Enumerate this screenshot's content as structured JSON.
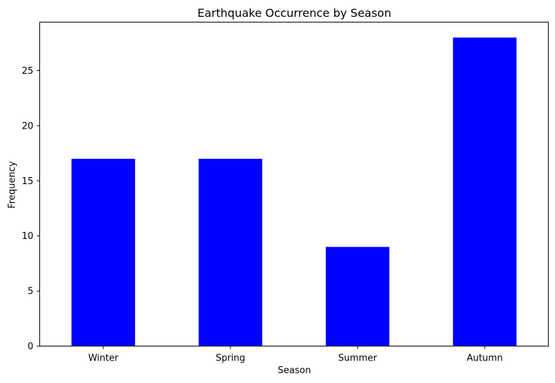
{
  "chart_data": {
    "type": "bar",
    "title": "Earthquake Occurrence by Season",
    "xlabel": "Season",
    "ylabel": "Frequency",
    "categories": [
      "Winter",
      "Spring",
      "Summer",
      "Autumn"
    ],
    "values": [
      17,
      17,
      9,
      28
    ],
    "ylim": [
      0,
      29.4
    ],
    "yticks": [
      0,
      5,
      10,
      15,
      20,
      25
    ],
    "bar_color": "#0000ff",
    "grid": false,
    "legend": "none"
  }
}
